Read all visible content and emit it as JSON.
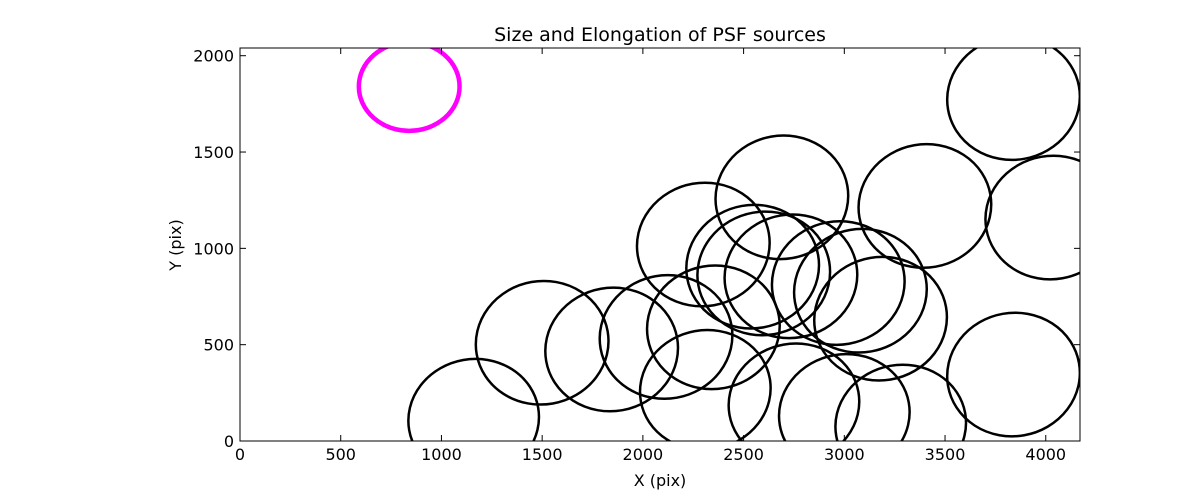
{
  "chart_data": {
    "type": "scatter",
    "title": "Size and Elongation of PSF sources",
    "xlabel": "X (pix)",
    "ylabel": "Y (pix)",
    "xlim": [
      0,
      4170
    ],
    "ylim": [
      0,
      2040
    ],
    "xticks": [
      0,
      500,
      1000,
      1500,
      2000,
      2500,
      3000,
      3500,
      4000
    ],
    "yticks": [
      0,
      500,
      1000,
      1500,
      2000
    ],
    "grid": false,
    "reference_ellipse": {
      "x": 840,
      "y": 1840,
      "width": 500,
      "height": 460,
      "angle": 0,
      "color": "#ff00ff"
    },
    "source_color": "#000000",
    "sources": [
      {
        "x": 1160,
        "y": 115,
        "width": 650,
        "height": 620,
        "angle": -10
      },
      {
        "x": 1500,
        "y": 510,
        "width": 660,
        "height": 640,
        "angle": -10
      },
      {
        "x": 1845,
        "y": 475,
        "width": 660,
        "height": 640,
        "angle": -10
      },
      {
        "x": 2115,
        "y": 540,
        "width": 660,
        "height": 640,
        "angle": -10
      },
      {
        "x": 2310,
        "y": 265,
        "width": 650,
        "height": 620,
        "angle": -10
      },
      {
        "x": 2350,
        "y": 590,
        "width": 660,
        "height": 640,
        "angle": -10
      },
      {
        "x": 2300,
        "y": 1020,
        "width": 660,
        "height": 640,
        "angle": -10
      },
      {
        "x": 2545,
        "y": 905,
        "width": 660,
        "height": 640,
        "angle": -10
      },
      {
        "x": 2600,
        "y": 870,
        "width": 660,
        "height": 640,
        "angle": -10
      },
      {
        "x": 2735,
        "y": 855,
        "width": 660,
        "height": 640,
        "angle": -10
      },
      {
        "x": 2690,
        "y": 1265,
        "width": 660,
        "height": 640,
        "angle": -10
      },
      {
        "x": 2750,
        "y": 195,
        "width": 650,
        "height": 620,
        "angle": -10
      },
      {
        "x": 2970,
        "y": 820,
        "width": 660,
        "height": 640,
        "angle": -10
      },
      {
        "x": 3000,
        "y": 140,
        "width": 650,
        "height": 620,
        "angle": -10
      },
      {
        "x": 3080,
        "y": 780,
        "width": 660,
        "height": 640,
        "angle": -10
      },
      {
        "x": 3180,
        "y": 635,
        "width": 660,
        "height": 640,
        "angle": -10
      },
      {
        "x": 3280,
        "y": 85,
        "width": 650,
        "height": 620,
        "angle": -10
      },
      {
        "x": 3400,
        "y": 1220,
        "width": 660,
        "height": 640,
        "angle": -10
      },
      {
        "x": 3840,
        "y": 1780,
        "width": 660,
        "height": 640,
        "angle": -10
      },
      {
        "x": 3840,
        "y": 345,
        "width": 660,
        "height": 640,
        "angle": -10
      },
      {
        "x": 4030,
        "y": 1160,
        "width": 660,
        "height": 640,
        "angle": -10
      }
    ]
  }
}
